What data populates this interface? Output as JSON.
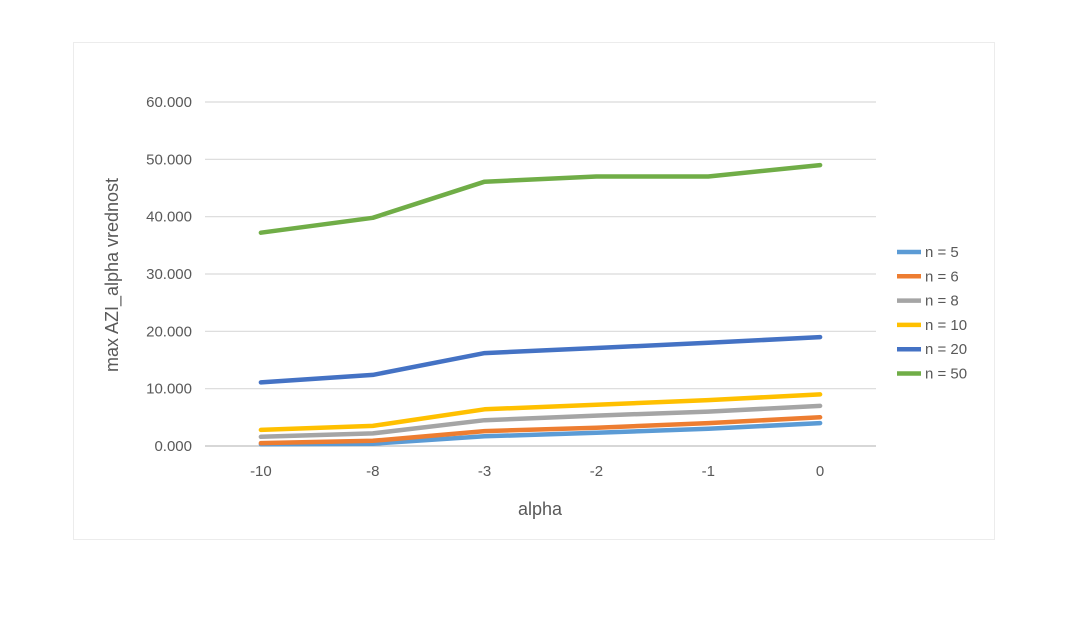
{
  "chart_data": {
    "type": "line",
    "title": "",
    "xlabel": "alpha",
    "ylabel": "max AZI_alpha vrednost",
    "categories": [
      "-10",
      "-8",
      "-3",
      "-2",
      "-1",
      "0"
    ],
    "y_ticks": [
      "0.000",
      "10.000",
      "20.000",
      "30.000",
      "40.000",
      "50.000",
      "60.000"
    ],
    "ylim": [
      0,
      60
    ],
    "grid": true,
    "legend_position": "right",
    "series": [
      {
        "name": "n = 5",
        "color": "#5b9bd5",
        "values": [
          0.3,
          0.4,
          1.7,
          2.3,
          3.0,
          4.0
        ]
      },
      {
        "name": "n = 6",
        "color": "#ed7d31",
        "values": [
          0.5,
          0.9,
          2.6,
          3.2,
          4.0,
          5.0
        ]
      },
      {
        "name": "n = 8",
        "color": "#a5a5a5",
        "values": [
          1.6,
          2.2,
          4.5,
          5.3,
          6.0,
          7.0
        ]
      },
      {
        "name": "n = 10",
        "color": "#ffc000",
        "values": [
          2.8,
          3.5,
          6.4,
          7.2,
          8.0,
          9.0
        ]
      },
      {
        "name": "n = 20",
        "color": "#4472c4",
        "values": [
          11.1,
          12.4,
          16.2,
          17.1,
          18.0,
          19.0
        ]
      },
      {
        "name": "n = 50",
        "color": "#70ad47",
        "values": [
          37.2,
          39.8,
          46.1,
          47.0,
          47.0,
          49.0
        ]
      }
    ]
  }
}
